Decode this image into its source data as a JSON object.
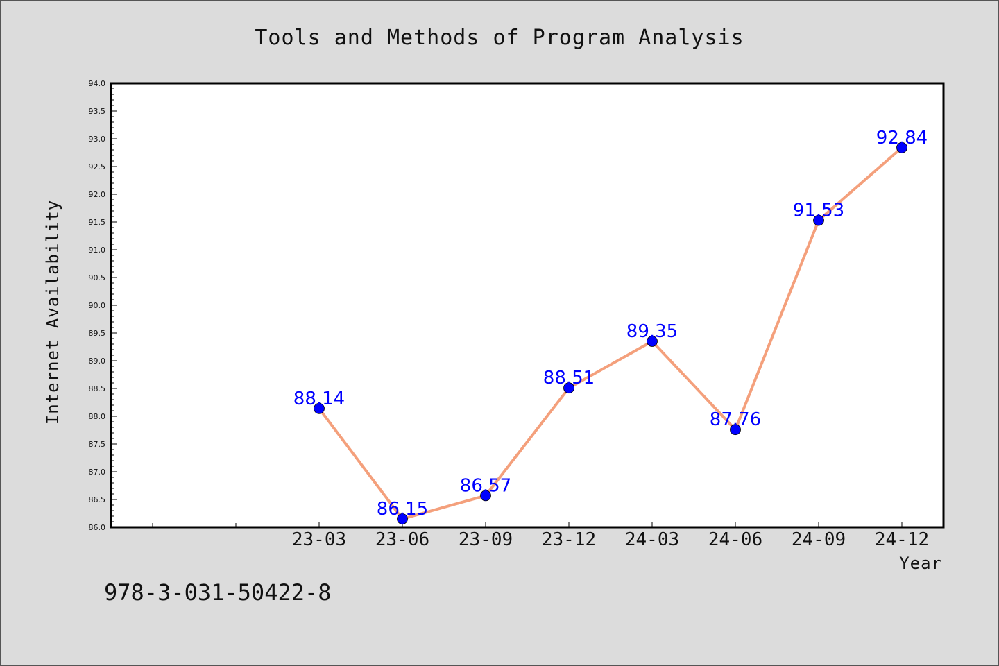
{
  "chart_data": {
    "type": "line",
    "title": "Tools and Methods of Program Analysis",
    "xlabel": "Year",
    "ylabel": "Internet Availability",
    "categories": [
      "23-03",
      "23-06",
      "23-09",
      "23-12",
      "24-03",
      "24-06",
      "24-09",
      "24-12"
    ],
    "series": [
      {
        "values": [
          88.14,
          86.15,
          86.57,
          88.51,
          89.35,
          87.76,
          91.53,
          92.84
        ]
      }
    ],
    "ylim": [
      86.0,
      94.0
    ],
    "ytick_step": 0.5,
    "line_color": "#f4a07c",
    "marker_color": "#0000ff",
    "label_color": "#0000ff",
    "grid": false,
    "legend": "none"
  },
  "footer": {
    "text": "978-3-031-50422-8"
  }
}
